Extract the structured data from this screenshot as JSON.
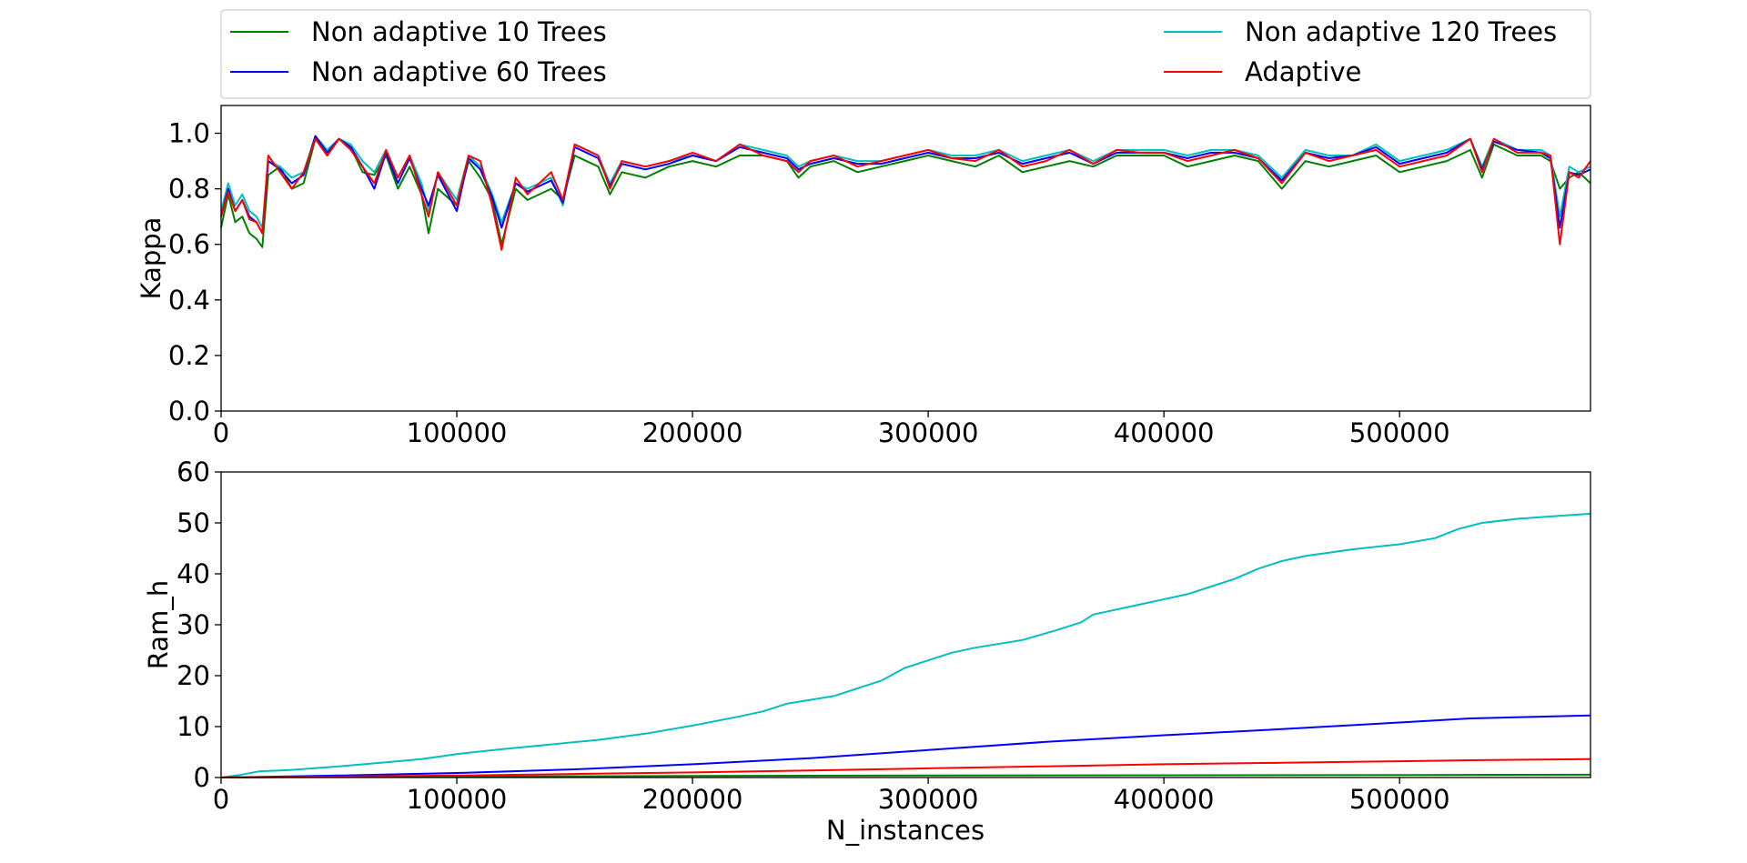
{
  "legend": {
    "placement": "top",
    "entries": [
      {
        "label": "Non adaptive 10 Trees",
        "color": "#008000"
      },
      {
        "label": "Non adaptive 120 Trees",
        "color": "#00bfbf"
      },
      {
        "label": "Non adaptive 60 Trees",
        "color": "#0000ff"
      },
      {
        "label": "Adaptive",
        "color": "#ff0000"
      }
    ]
  },
  "chart_data": [
    {
      "type": "line",
      "ylabel": "Kappa",
      "xlim": [
        0,
        581000
      ],
      "ylim": [
        0,
        1.1
      ],
      "xticks": [
        0,
        100000,
        200000,
        300000,
        400000,
        500000
      ],
      "yticks": [
        0.0,
        0.2,
        0.4,
        0.6,
        0.8,
        1.0
      ],
      "ytick_labels": [
        "0.0",
        "0.2",
        "0.4",
        "0.6",
        "0.8",
        "1.0"
      ],
      "grid": false,
      "x": [
        0,
        3000,
        6000,
        9000,
        12000,
        15000,
        17500,
        20000,
        25000,
        30000,
        35000,
        40000,
        45000,
        50000,
        55000,
        60000,
        65000,
        70000,
        75000,
        80000,
        85000,
        88000,
        92000,
        100000,
        105000,
        110000,
        115000,
        119000,
        125000,
        130000,
        140000,
        145000,
        150000,
        160000,
        165000,
        170000,
        180000,
        190000,
        200000,
        210000,
        220000,
        230000,
        240000,
        245000,
        250000,
        260000,
        270000,
        280000,
        290000,
        300000,
        310000,
        320000,
        330000,
        340000,
        350000,
        360000,
        370000,
        380000,
        390000,
        400000,
        410000,
        420000,
        430000,
        440000,
        450000,
        460000,
        470000,
        480000,
        490000,
        500000,
        510000,
        520000,
        530000,
        535000,
        540000,
        550000,
        560000,
        564000,
        568000,
        572000,
        576000,
        581000
      ],
      "series": [
        {
          "name": "Non adaptive 10 Trees",
          "color": "#008000",
          "values": [
            0.66,
            0.78,
            0.68,
            0.7,
            0.64,
            0.62,
            0.59,
            0.85,
            0.88,
            0.8,
            0.82,
            0.98,
            0.92,
            0.98,
            0.95,
            0.86,
            0.85,
            0.92,
            0.8,
            0.88,
            0.78,
            0.64,
            0.8,
            0.74,
            0.9,
            0.84,
            0.76,
            0.6,
            0.8,
            0.76,
            0.8,
            0.76,
            0.92,
            0.88,
            0.78,
            0.86,
            0.84,
            0.88,
            0.9,
            0.88,
            0.92,
            0.92,
            0.9,
            0.84,
            0.88,
            0.9,
            0.86,
            0.88,
            0.9,
            0.92,
            0.9,
            0.88,
            0.92,
            0.86,
            0.88,
            0.9,
            0.88,
            0.92,
            0.92,
            0.92,
            0.88,
            0.9,
            0.92,
            0.9,
            0.8,
            0.9,
            0.88,
            0.9,
            0.92,
            0.86,
            0.88,
            0.9,
            0.94,
            0.84,
            0.96,
            0.92,
            0.92,
            0.9,
            0.8,
            0.84,
            0.86,
            0.82
          ]
        },
        {
          "name": "Non adaptive 120 Trees",
          "color": "#00bfbf",
          "values": [
            0.72,
            0.82,
            0.74,
            0.78,
            0.72,
            0.7,
            0.66,
            0.9,
            0.88,
            0.84,
            0.86,
            0.99,
            0.94,
            0.98,
            0.96,
            0.9,
            0.86,
            0.94,
            0.84,
            0.92,
            0.82,
            0.72,
            0.86,
            0.76,
            0.92,
            0.88,
            0.78,
            0.68,
            0.82,
            0.8,
            0.84,
            0.74,
            0.96,
            0.92,
            0.82,
            0.9,
            0.88,
            0.9,
            0.92,
            0.9,
            0.96,
            0.94,
            0.92,
            0.88,
            0.9,
            0.92,
            0.9,
            0.9,
            0.92,
            0.94,
            0.92,
            0.92,
            0.94,
            0.9,
            0.92,
            0.94,
            0.9,
            0.94,
            0.94,
            0.94,
            0.92,
            0.94,
            0.94,
            0.92,
            0.84,
            0.94,
            0.92,
            0.92,
            0.96,
            0.9,
            0.92,
            0.94,
            0.98,
            0.88,
            0.98,
            0.94,
            0.94,
            0.92,
            0.7,
            0.88,
            0.86,
            0.88
          ]
        },
        {
          "name": "Non adaptive 60 Trees",
          "color": "#0000ff",
          "values": [
            0.7,
            0.8,
            0.72,
            0.76,
            0.7,
            0.68,
            0.64,
            0.9,
            0.87,
            0.82,
            0.85,
            0.99,
            0.93,
            0.98,
            0.95,
            0.88,
            0.8,
            0.93,
            0.82,
            0.91,
            0.8,
            0.74,
            0.85,
            0.72,
            0.91,
            0.87,
            0.77,
            0.66,
            0.82,
            0.79,
            0.83,
            0.75,
            0.95,
            0.91,
            0.81,
            0.89,
            0.87,
            0.89,
            0.92,
            0.9,
            0.95,
            0.93,
            0.91,
            0.87,
            0.89,
            0.91,
            0.89,
            0.89,
            0.91,
            0.93,
            0.91,
            0.91,
            0.93,
            0.89,
            0.91,
            0.93,
            0.89,
            0.93,
            0.93,
            0.93,
            0.91,
            0.93,
            0.93,
            0.91,
            0.83,
            0.93,
            0.91,
            0.92,
            0.95,
            0.89,
            0.91,
            0.93,
            0.98,
            0.87,
            0.97,
            0.94,
            0.93,
            0.91,
            0.66,
            0.86,
            0.85,
            0.87
          ]
        },
        {
          "name": "Adaptive",
          "color": "#ff0000",
          "values": [
            0.7,
            0.79,
            0.72,
            0.76,
            0.69,
            0.68,
            0.64,
            0.92,
            0.86,
            0.8,
            0.86,
            0.98,
            0.92,
            0.98,
            0.94,
            0.88,
            0.82,
            0.94,
            0.84,
            0.92,
            0.78,
            0.7,
            0.86,
            0.74,
            0.92,
            0.9,
            0.74,
            0.58,
            0.84,
            0.78,
            0.86,
            0.76,
            0.96,
            0.92,
            0.8,
            0.9,
            0.88,
            0.9,
            0.93,
            0.9,
            0.96,
            0.92,
            0.9,
            0.86,
            0.9,
            0.92,
            0.88,
            0.9,
            0.92,
            0.94,
            0.91,
            0.9,
            0.94,
            0.88,
            0.9,
            0.94,
            0.89,
            0.94,
            0.93,
            0.93,
            0.9,
            0.92,
            0.94,
            0.91,
            0.82,
            0.93,
            0.9,
            0.92,
            0.94,
            0.88,
            0.9,
            0.92,
            0.98,
            0.86,
            0.98,
            0.93,
            0.93,
            0.92,
            0.6,
            0.86,
            0.84,
            0.9
          ]
        }
      ]
    },
    {
      "type": "line",
      "xlabel": "N_instances",
      "ylabel": "Ram_h",
      "xlim": [
        0,
        581000
      ],
      "ylim": [
        0,
        60
      ],
      "xticks": [
        0,
        100000,
        200000,
        300000,
        400000,
        500000
      ],
      "yticks": [
        0,
        10,
        20,
        30,
        40,
        50,
        60
      ],
      "ytick_labels": [
        "0",
        "10",
        "20",
        "30",
        "40",
        "50",
        "60"
      ],
      "grid": false,
      "series": [
        {
          "name": "Non adaptive 10 Trees",
          "color": "#008000",
          "x": [
            0,
            100000,
            200000,
            300000,
            400000,
            500000,
            581000
          ],
          "values": [
            0,
            0.2,
            0.3,
            0.4,
            0.45,
            0.5,
            0.55
          ]
        },
        {
          "name": "Non adaptive 120 Trees",
          "color": "#00bfbf",
          "x": [
            0,
            8000,
            16000,
            30000,
            50000,
            70000,
            85000,
            100000,
            120000,
            140000,
            160000,
            180000,
            200000,
            220000,
            230000,
            240000,
            260000,
            280000,
            290000,
            300000,
            310000,
            320000,
            340000,
            355000,
            365000,
            370000,
            390000,
            410000,
            420000,
            430000,
            440000,
            450000,
            460000,
            480000,
            500000,
            515000,
            525000,
            535000,
            550000,
            565000,
            581000
          ],
          "values": [
            0,
            0.5,
            1.2,
            1.5,
            2.2,
            3.0,
            3.6,
            4.6,
            5.6,
            6.5,
            7.4,
            8.6,
            10.2,
            12.0,
            13.0,
            14.5,
            16.0,
            19.0,
            21.5,
            23.0,
            24.5,
            25.5,
            27.0,
            29.0,
            30.5,
            32.0,
            34.0,
            36.0,
            37.5,
            39.0,
            41.0,
            42.5,
            43.5,
            44.8,
            45.8,
            47.0,
            48.8,
            50.0,
            50.8,
            51.3,
            51.8
          ]
        },
        {
          "name": "Non adaptive 60 Trees",
          "color": "#0000ff",
          "x": [
            0,
            50000,
            100000,
            150000,
            200000,
            250000,
            300000,
            350000,
            400000,
            450000,
            500000,
            530000,
            581000
          ],
          "values": [
            0,
            0.4,
            0.9,
            1.6,
            2.6,
            3.8,
            5.4,
            7.0,
            8.3,
            9.5,
            10.8,
            11.6,
            12.2
          ]
        },
        {
          "name": "Adaptive",
          "color": "#ff0000",
          "x": [
            0,
            50000,
            100000,
            150000,
            200000,
            250000,
            300000,
            350000,
            400000,
            450000,
            500000,
            530000,
            581000
          ],
          "values": [
            0,
            0.2,
            0.4,
            0.7,
            1.0,
            1.4,
            1.8,
            2.2,
            2.6,
            2.9,
            3.2,
            3.4,
            3.6
          ]
        }
      ]
    }
  ]
}
